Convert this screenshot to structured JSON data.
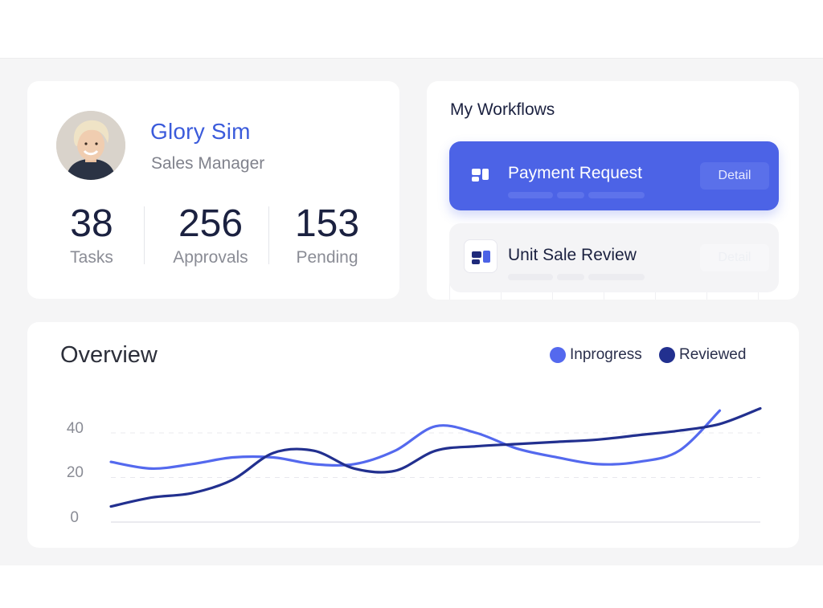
{
  "profile": {
    "name": "Glory Sim",
    "role": "Sales Manager",
    "avatar_icon": "user-photo",
    "stats": [
      {
        "value": "38",
        "label": "Tasks"
      },
      {
        "value": "256",
        "label": "Approvals"
      },
      {
        "value": "153",
        "label": "Pending"
      }
    ]
  },
  "workflows": {
    "title": "My Workflows",
    "items": [
      {
        "label": "Payment Request",
        "button": "Detail",
        "icon": "workflow-icon",
        "state": "active"
      },
      {
        "label": "Unit Sale Review",
        "button": "Detail",
        "icon": "workflow-icon",
        "state": "inactive"
      }
    ]
  },
  "overview": {
    "title": "Overview",
    "legend": [
      {
        "label": "Inprogress",
        "color": "#5469ee"
      },
      {
        "label": "Reviewed",
        "color": "#22308f"
      }
    ]
  },
  "chart_data": {
    "type": "line",
    "title": "Overview",
    "xlabel": "",
    "ylabel": "",
    "ylim": [
      0,
      40
    ],
    "yticks": [
      0,
      20,
      40
    ],
    "grid": true,
    "legend_position": "top-right",
    "x": [
      0,
      1,
      2,
      3,
      4,
      5,
      6,
      7,
      8,
      9,
      10,
      11,
      12,
      13,
      14,
      15,
      16
    ],
    "series": [
      {
        "name": "Inprogress",
        "color": "#5469ee",
        "values": [
          27,
          24,
          26,
          29,
          29,
          26,
          26,
          32,
          43,
          40,
          33,
          29,
          26,
          27,
          32,
          50,
          null
        ]
      },
      {
        "name": "Reviewed",
        "color": "#22308f",
        "values": [
          7,
          11,
          13,
          19,
          31,
          32,
          24,
          23,
          32,
          34,
          35,
          36,
          37,
          39,
          41,
          44,
          51
        ]
      }
    ]
  }
}
